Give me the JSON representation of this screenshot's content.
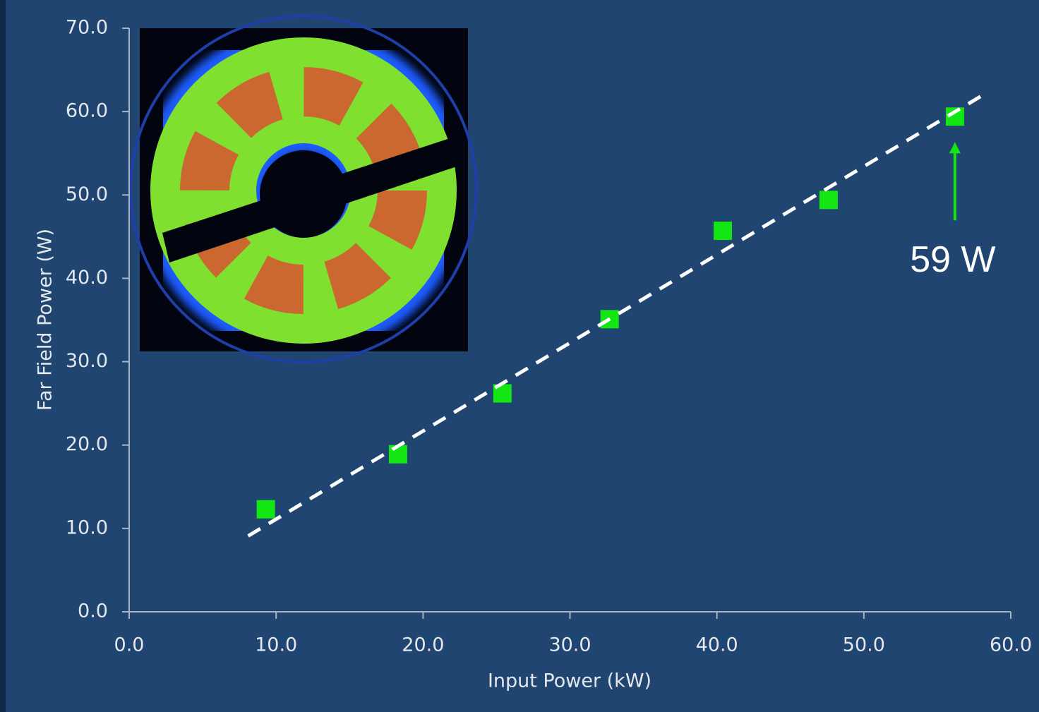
{
  "chart_data": {
    "type": "scatter",
    "x_label": "Input Power (kW)",
    "y_label": "Far Field Power (W)",
    "series": [
      {
        "x": [
          9.3,
          18.3,
          25.4,
          32.7,
          40.4,
          47.6,
          56.2
        ],
        "values": [
          12.3,
          18.9,
          26.2,
          35.1,
          45.7,
          49.4,
          59.4
        ],
        "color": "#14e614"
      }
    ],
    "trendline": {
      "x": [
        8.1,
        58.4
      ],
      "values": [
        9.1,
        62.3
      ],
      "color": "#ffffff"
    },
    "annotation": "59 W",
    "annotation_color": "#14e614",
    "xlim": [
      0,
      60
    ],
    "ylim": [
      0,
      70
    ],
    "xticks": [
      {
        "value": 0,
        "label": "0.0"
      },
      {
        "value": 10,
        "label": "10.0"
      },
      {
        "value": 20,
        "label": "20.0"
      },
      {
        "value": 30,
        "label": "30.0"
      },
      {
        "value": 40,
        "label": "40.0"
      },
      {
        "value": 50,
        "label": "50.0"
      },
      {
        "value": 60,
        "label": "60.0"
      }
    ],
    "yticks": [
      {
        "value": 0,
        "label": "0.0"
      },
      {
        "value": 10,
        "label": "10.0"
      },
      {
        "value": 20,
        "label": "20.0"
      },
      {
        "value": 30,
        "label": "30.0"
      },
      {
        "value": 40,
        "label": "40.0"
      },
      {
        "value": 50,
        "label": "50.0"
      },
      {
        "value": 60,
        "label": "60.0"
      },
      {
        "value": 70,
        "label": "70.0"
      }
    ]
  }
}
